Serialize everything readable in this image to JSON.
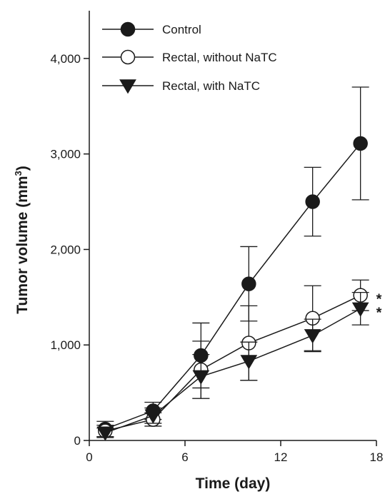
{
  "chart_data": {
    "type": "line",
    "title": "",
    "xlabel": "Time (day)",
    "ylabel_prefix": "Tumor volume (mm",
    "ylabel_superscript": "3",
    "ylabel_suffix": ")",
    "xlim": [
      0,
      18
    ],
    "ylim": [
      0,
      4500
    ],
    "x_ticks": [
      0,
      6,
      12,
      18
    ],
    "x_tick_labels": [
      "0",
      "6",
      "12",
      "18"
    ],
    "y_ticks": [
      0,
      1000,
      2000,
      3000,
      4000
    ],
    "y_tick_labels": [
      "0",
      "1,000",
      "2,000",
      "3,000",
      "4,000"
    ],
    "grid": false,
    "legend_position": "top-left",
    "x": [
      1,
      4,
      7,
      10,
      14,
      17
    ],
    "series": [
      {
        "name": "Control",
        "marker": "filled-circle",
        "values": [
          120,
          310,
          890,
          1640,
          2500,
          3110
        ],
        "error": [
          80,
          90,
          340,
          390,
          360,
          590
        ]
      },
      {
        "name": "Rectal, without NaTC",
        "marker": "open-circle",
        "values": [
          100,
          220,
          740,
          1020,
          1280,
          1520
        ],
        "error": [
          60,
          70,
          300,
          390,
          340,
          160
        ]
      },
      {
        "name": "Rectal, with NaTC",
        "marker": "filled-triangle-down",
        "values": [
          80,
          260,
          670,
          830,
          1100,
          1380
        ],
        "error": [
          50,
          80,
          230,
          200,
          170,
          170
        ]
      }
    ],
    "annotations": [
      {
        "text": "*",
        "series": 1
      },
      {
        "text": "*",
        "series": 2
      }
    ]
  }
}
